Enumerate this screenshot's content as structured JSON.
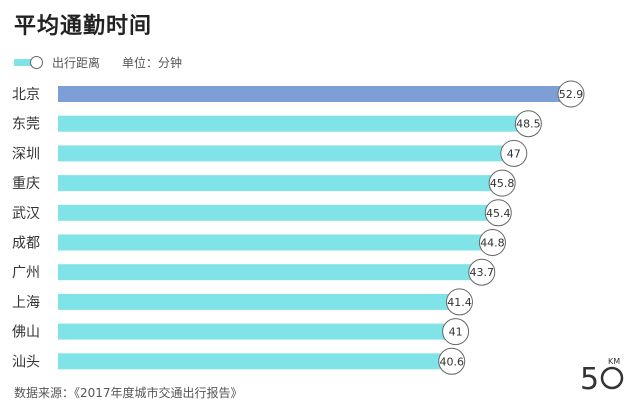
{
  "title": "平均通勤时间",
  "legend": {
    "series_label": "出行距离",
    "unit_label": "单位：分钟"
  },
  "source": "数据来源：《2017年度城市交通出行报告》",
  "logo": {
    "digits": "5",
    "suffix": "KM"
  },
  "colors": {
    "bar": "#7fe3e7",
    "highlight_bar": "#7d9fd6",
    "label_circle_border": "#666666"
  },
  "chart_data": {
    "type": "bar",
    "orientation": "horizontal",
    "title": "平均通勤时间",
    "unit": "分钟",
    "categories": [
      "北京",
      "东莞",
      "深圳",
      "重庆",
      "武汉",
      "成都",
      "广州",
      "上海",
      "佛山",
      "汕头"
    ],
    "values": [
      52.9,
      48.5,
      47,
      45.8,
      45.4,
      44.8,
      43.7,
      41.4,
      41,
      40.6
    ],
    "labels": [
      "52.9",
      "48.5",
      "47",
      "45.8",
      "45.4",
      "44.8",
      "43.7",
      "41.4",
      "41",
      "40.6"
    ],
    "highlight_index": 0,
    "xlim": [
      0,
      52.9
    ],
    "grid": false,
    "legend_position": "top-left"
  }
}
